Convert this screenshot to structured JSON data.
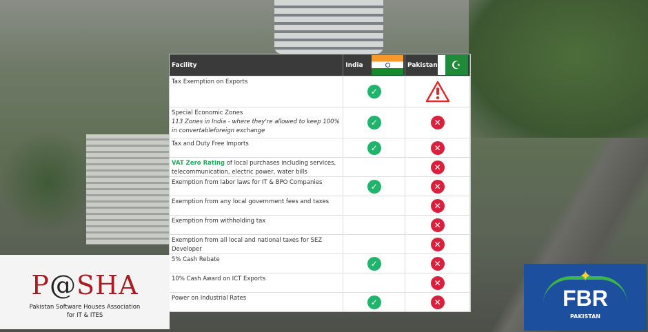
{
  "table": {
    "headers": {
      "facility": "Facility",
      "india": "India",
      "pakistan": "Pakistan"
    },
    "rows": [
      {
        "facility": "Tax Exemption on Exports",
        "india": "check",
        "pakistan": "warning"
      },
      {
        "facility": "Special Economic Zones",
        "note": "113 Zones in India - where they're allowed to keep 100% in convertableforeign exchange",
        "india": "check",
        "pakistan": "cross"
      },
      {
        "facility": "Tax and Duty Free Imports",
        "india": "check",
        "pakistan": "cross"
      },
      {
        "highlight": "VAT Zero Rating",
        "facility": " of local purchases including services, telecommunication, electric power, water bills",
        "india": "",
        "pakistan": "cross"
      },
      {
        "facility": "Exemption from labor laws for IT & BPO Companies",
        "india": "check",
        "pakistan": "cross"
      },
      {
        "facility": "Exemption from any local government fees and taxes",
        "india": "",
        "pakistan": "cross"
      },
      {
        "facility": "Exemption from withholding tax",
        "india": "",
        "pakistan": "cross"
      },
      {
        "facility": "Exemption from all local and national taxes for SEZ Developer",
        "india": "",
        "pakistan": "cross"
      },
      {
        "facility": "5% Cash Rebate",
        "india": "check",
        "pakistan": "cross"
      },
      {
        "facility": "10% Cash Award on ICT Exports",
        "india": "",
        "pakistan": "cross"
      },
      {
        "facility": "Power on Industrial Rates",
        "india": "check",
        "pakistan": "cross"
      }
    ]
  },
  "logos": {
    "pasha": {
      "name": "P@SHA",
      "subtitle_1": "Pakistan Software Houses Association",
      "subtitle_2": "for IT & ITES"
    },
    "fbr": {
      "name": "FBR",
      "subtitle": "PAKISTAN"
    }
  },
  "colors": {
    "check": "#1fb46a",
    "cross": "#d9213d",
    "header": "#3a3a3a",
    "fbr_blue": "#1d4f9f",
    "pasha_red": "#a91d22"
  }
}
